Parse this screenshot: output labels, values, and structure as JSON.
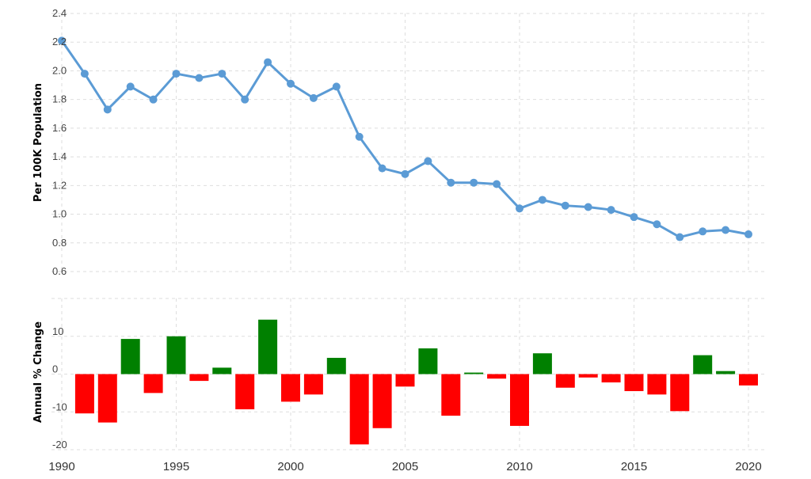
{
  "chart_data": [
    {
      "type": "line",
      "ylabel": "Per 100K Population",
      "xlim": [
        1990,
        2021.3
      ],
      "ylim": [
        0.6,
        2.4
      ],
      "yticks": [
        "0.6",
        "0.8",
        "1.0",
        "1.2",
        "1.4",
        "1.6",
        "1.8",
        "2.0",
        "2.2",
        "2.4"
      ],
      "grid": true,
      "series": [
        {
          "color": "#5b9bd5",
          "x": [
            1990,
            1991,
            1992,
            1993,
            1994,
            1995,
            1996,
            1997,
            1998,
            1999,
            2000,
            2001,
            2002,
            2003,
            2004,
            2005,
            2006,
            2007,
            2008,
            2009,
            2010,
            2011,
            2012,
            2013,
            2014,
            2015,
            2016,
            2017,
            2018,
            2019,
            2020
          ],
          "values": [
            2.21,
            1.98,
            1.73,
            1.89,
            1.8,
            1.98,
            1.95,
            1.98,
            1.8,
            2.06,
            1.91,
            1.81,
            1.89,
            1.54,
            1.32,
            1.28,
            1.37,
            1.22,
            1.22,
            1.21,
            1.04,
            1.1,
            1.06,
            1.05,
            1.03,
            0.98,
            0.93,
            0.84,
            0.88,
            0.89,
            0.86
          ]
        }
      ]
    },
    {
      "type": "bar",
      "ylabel": "Annual % Change",
      "ylim": [
        -20,
        20
      ],
      "yticks": [
        "-20",
        "-10",
        "0",
        "10"
      ],
      "grid": true,
      "positive_color": "#008000",
      "negative_color": "#ff0000",
      "series": [
        {
          "x": [
            1991,
            1992,
            1993,
            1994,
            1995,
            1996,
            1997,
            1998,
            1999,
            2000,
            2001,
            2002,
            2003,
            2004,
            2005,
            2006,
            2007,
            2008,
            2009,
            2010,
            2011,
            2012,
            2013,
            2014,
            2015,
            2016,
            2017,
            2018,
            2019,
            2020
          ],
          "values": [
            -10.4,
            -12.8,
            9.3,
            -5.0,
            10.0,
            -1.8,
            1.7,
            -9.3,
            14.4,
            -7.3,
            -5.4,
            4.3,
            -18.6,
            -14.3,
            -3.3,
            6.8,
            -11.0,
            0.4,
            -1.2,
            -13.7,
            5.5,
            -3.6,
            -0.9,
            -2.2,
            -4.5,
            -5.4,
            -9.8,
            5.0,
            0.8,
            -3.0
          ]
        }
      ]
    }
  ],
  "x_axis": {
    "ticks": [
      "1990",
      "1995",
      "2000",
      "2005",
      "2010",
      "2015",
      "2020"
    ]
  }
}
